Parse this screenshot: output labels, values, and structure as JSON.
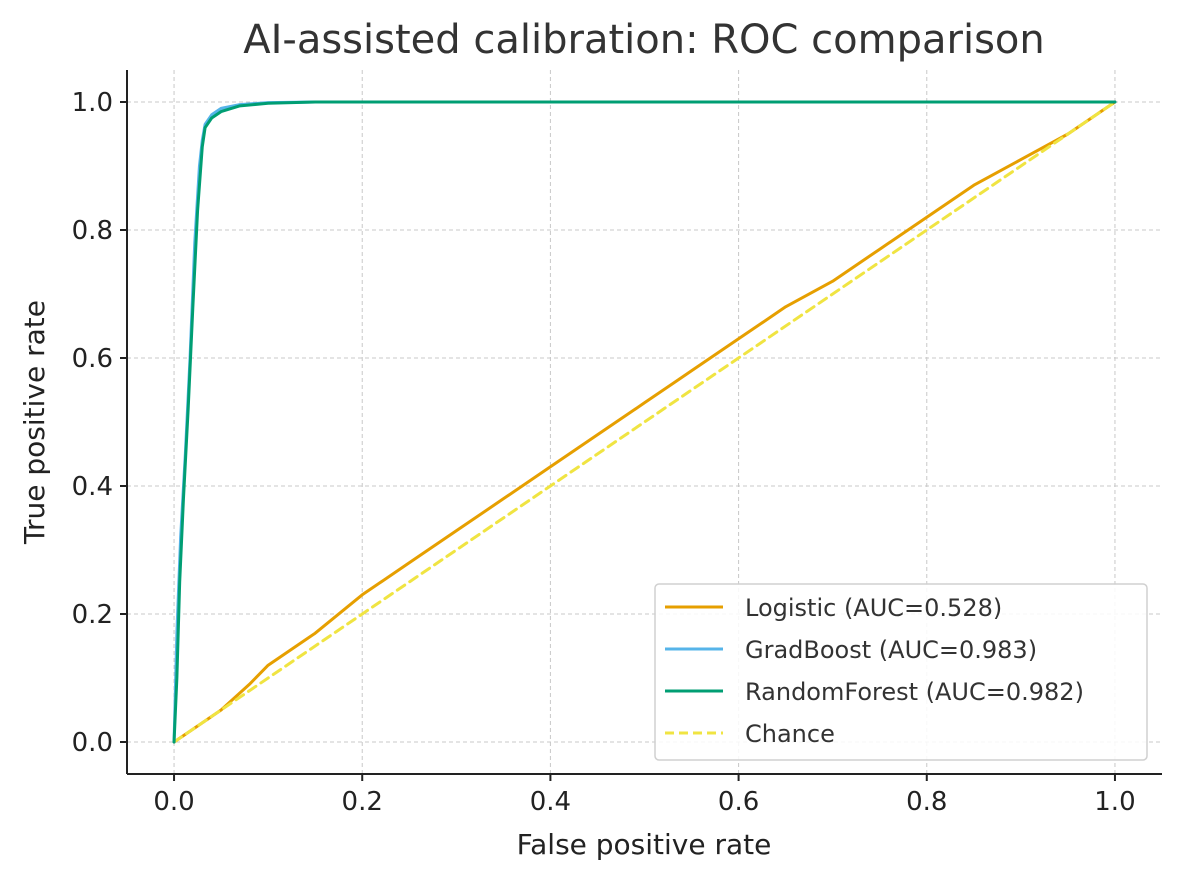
{
  "chart_data": {
    "type": "line",
    "title": "AI-assisted calibration: ROC comparison",
    "xlabel": "False positive rate",
    "ylabel": "True positive rate",
    "xlim": [
      -0.05,
      1.05
    ],
    "ylim": [
      -0.05,
      1.05
    ],
    "xticks": [
      0.0,
      0.2,
      0.4,
      0.6,
      0.8,
      1.0
    ],
    "yticks": [
      0.0,
      0.2,
      0.4,
      0.6,
      0.8,
      1.0
    ],
    "xtick_labels": [
      "0.0",
      "0.2",
      "0.4",
      "0.6",
      "0.8",
      "1.0"
    ],
    "ytick_labels": [
      "0.0",
      "0.2",
      "0.4",
      "0.6",
      "0.8",
      "1.0"
    ],
    "grid": true,
    "legend_position": "bottom-right",
    "series": [
      {
        "name": "Logistic (AUC=0.528)",
        "color": "#E69F00",
        "style": "solid",
        "x": [
          0.0,
          0.02,
          0.05,
          0.08,
          0.1,
          0.15,
          0.2,
          0.25,
          0.3,
          0.35,
          0.4,
          0.45,
          0.5,
          0.55,
          0.6,
          0.65,
          0.7,
          0.75,
          0.8,
          0.85,
          0.9,
          0.95,
          1.0
        ],
        "y": [
          0.0,
          0.02,
          0.05,
          0.09,
          0.12,
          0.17,
          0.23,
          0.28,
          0.33,
          0.38,
          0.43,
          0.48,
          0.53,
          0.58,
          0.63,
          0.68,
          0.72,
          0.77,
          0.82,
          0.87,
          0.91,
          0.95,
          1.0
        ]
      },
      {
        "name": "GradBoost (AUC=0.983)",
        "color": "#56B4E9",
        "style": "solid",
        "x": [
          0.0,
          0.003,
          0.007,
          0.012,
          0.017,
          0.022,
          0.027,
          0.03,
          0.033,
          0.04,
          0.05,
          0.07,
          0.1,
          0.15,
          0.3,
          0.5,
          1.0
        ],
        "y": [
          0.0,
          0.17,
          0.32,
          0.45,
          0.6,
          0.78,
          0.9,
          0.94,
          0.965,
          0.98,
          0.99,
          0.996,
          0.999,
          1.0,
          1.0,
          1.0,
          1.0
        ]
      },
      {
        "name": "RandomForest (AUC=0.982)",
        "color": "#009E73",
        "style": "solid",
        "x": [
          0.0,
          0.003,
          0.006,
          0.01,
          0.015,
          0.02,
          0.025,
          0.03,
          0.033,
          0.04,
          0.05,
          0.07,
          0.1,
          0.15,
          0.3,
          0.5,
          1.0
        ],
        "y": [
          0.0,
          0.1,
          0.25,
          0.38,
          0.52,
          0.68,
          0.83,
          0.93,
          0.96,
          0.975,
          0.985,
          0.994,
          0.998,
          1.0,
          1.0,
          1.0,
          1.0
        ]
      },
      {
        "name": "Chance",
        "color": "#F0E442",
        "style": "dashed",
        "x": [
          0.0,
          1.0
        ],
        "y": [
          0.0,
          1.0
        ]
      }
    ]
  }
}
